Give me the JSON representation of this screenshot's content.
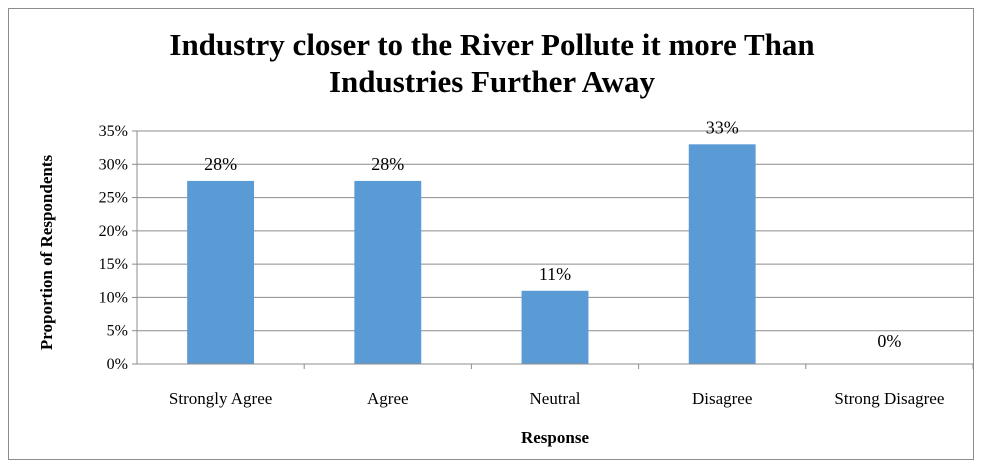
{
  "chart_data": {
    "type": "bar",
    "title_line1": "Industry closer to the River Pollute it more Than",
    "title_line2": "Industries Further Away",
    "xlabel": "Response",
    "ylabel": "Proportion of Respondents",
    "categories": [
      "Strongly Agree",
      "Agree",
      "Neutral",
      "Disagree",
      "Strong Disagree"
    ],
    "values": [
      27.5,
      27.5,
      11,
      33,
      0
    ],
    "data_labels": [
      "28%",
      "28%",
      "11%",
      "33%",
      "0%"
    ],
    "ylim": [
      0,
      35
    ],
    "yticks": [
      0,
      5,
      10,
      15,
      20,
      25,
      30,
      35
    ],
    "ytick_labels": [
      "0%",
      "5%",
      "10%",
      "15%",
      "20%",
      "25%",
      "30%",
      "35%"
    ],
    "grid": true,
    "legend": "none",
    "bar_color": "#5b9bd5"
  }
}
